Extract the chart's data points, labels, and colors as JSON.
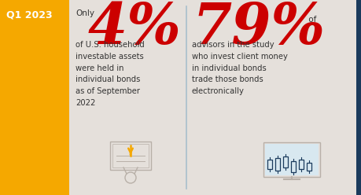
{
  "bg_color": "#e5e0db",
  "left_panel_color": "#F5A800",
  "right_border_color": "#1a3a5c",
  "divider_color": "#a8bfcc",
  "red_color": "#cc0000",
  "dark_blue": "#1a3a5c",
  "text_color": "#333333",
  "icon_color": "#b8b0a8",
  "q1_label": "Q1 2023",
  "stat1_big": "4%",
  "stat1_prefix": "Only",
  "stat1_desc": "of U.S. household\ninvestable assets\nwere held in\nindividual bonds\nas of September\n2022",
  "stat2_big": "79%",
  "stat2_suffix": " of",
  "stat2_desc": "advisors in the study\nwho invest client money\nin individual bonds\ntrade those bonds\nelectronically",
  "fig_w": 4.6,
  "fig_h": 2.48,
  "dpi": 100
}
